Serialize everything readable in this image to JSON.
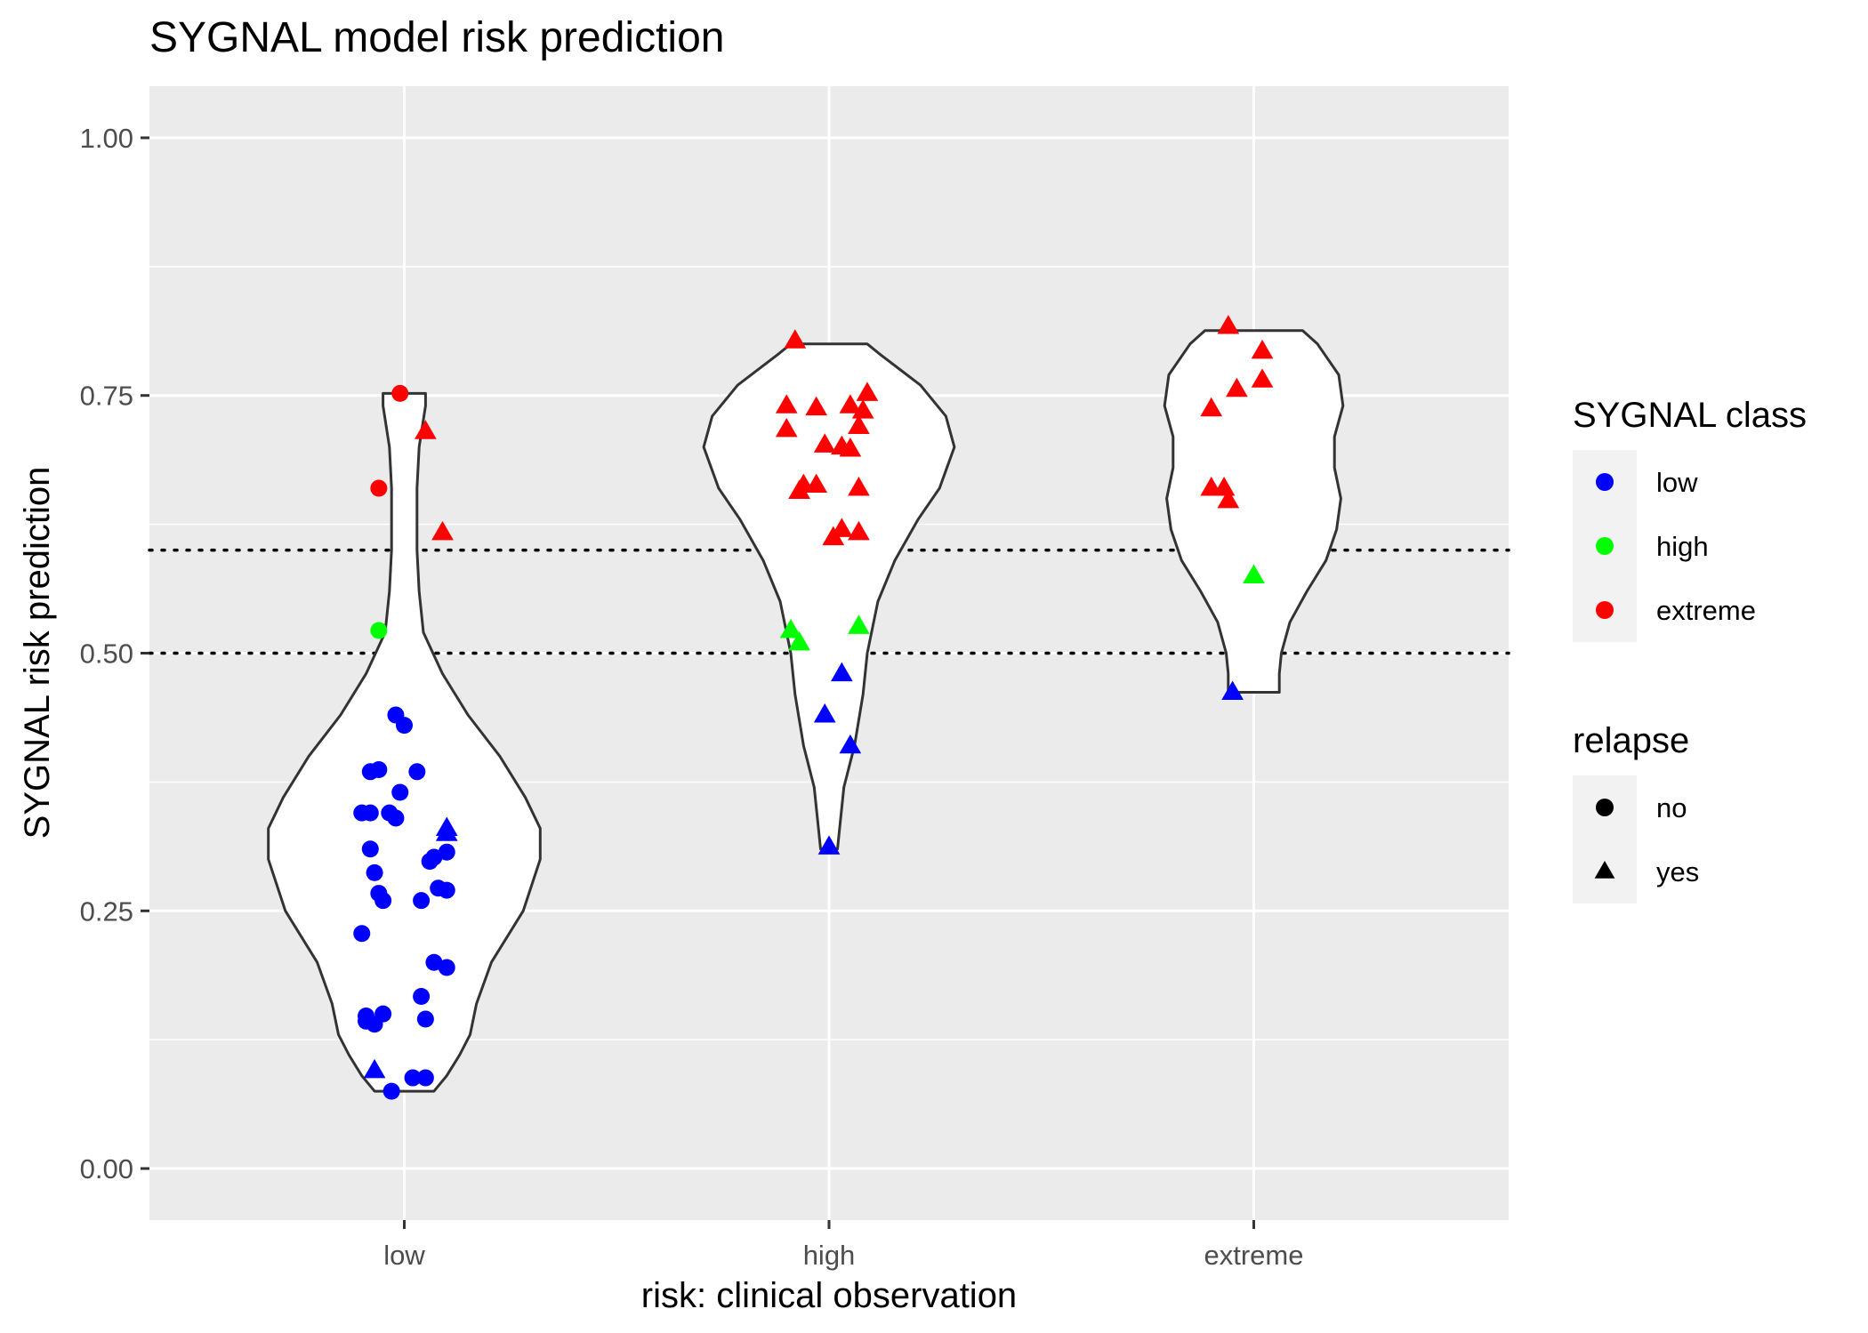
{
  "chart_data": {
    "type": "violin-jitter",
    "title": "SYGNAL model risk prediction",
    "xlabel": "risk: clinical observation",
    "ylabel": "SYGNAL risk prediction",
    "ylim": [
      -0.05,
      1.05
    ],
    "yticks": [
      0.0,
      0.25,
      0.5,
      0.75,
      1.0
    ],
    "ytick_labels": [
      "0.00",
      "0.25",
      "0.50",
      "0.75",
      "1.00"
    ],
    "categories": [
      "low",
      "high",
      "extreme"
    ],
    "reference_lines": [
      0.5,
      0.6
    ],
    "grid": true,
    "legend_position": "right",
    "legends": [
      {
        "title": "SYGNAL class",
        "entries": [
          {
            "label": "low",
            "color": "#0000FF",
            "shape": "circle"
          },
          {
            "label": "high",
            "color": "#00FF00",
            "shape": "circle"
          },
          {
            "label": "extreme",
            "color": "#FF0000",
            "shape": "circle"
          }
        ]
      },
      {
        "title": "relapse",
        "entries": [
          {
            "label": "no",
            "color": "#000000",
            "shape": "circle"
          },
          {
            "label": "yes",
            "color": "#000000",
            "shape": "triangle"
          }
        ]
      }
    ],
    "class_colors": {
      "low": "#0000FF",
      "high": "#00FF00",
      "extreme": "#FF0000"
    },
    "violins": [
      {
        "category": "low",
        "ymin": 0.075,
        "ymax": 0.752,
        "profile": [
          [
            0.075,
            0.14
          ],
          [
            0.09,
            0.2
          ],
          [
            0.11,
            0.26
          ],
          [
            0.13,
            0.31
          ],
          [
            0.16,
            0.34
          ],
          [
            0.2,
            0.41
          ],
          [
            0.25,
            0.56
          ],
          [
            0.3,
            0.64
          ],
          [
            0.33,
            0.64
          ],
          [
            0.36,
            0.57
          ],
          [
            0.4,
            0.45
          ],
          [
            0.44,
            0.3
          ],
          [
            0.48,
            0.18
          ],
          [
            0.52,
            0.09
          ],
          [
            0.56,
            0.07
          ],
          [
            0.6,
            0.06
          ],
          [
            0.66,
            0.06
          ],
          [
            0.7,
            0.07
          ],
          [
            0.74,
            0.1
          ],
          [
            0.752,
            0.1
          ]
        ]
      },
      {
        "category": "high",
        "ymin": 0.31,
        "ymax": 0.8,
        "profile": [
          [
            0.31,
            0.04
          ],
          [
            0.33,
            0.05
          ],
          [
            0.37,
            0.07
          ],
          [
            0.41,
            0.12
          ],
          [
            0.46,
            0.16
          ],
          [
            0.5,
            0.18
          ],
          [
            0.55,
            0.23
          ],
          [
            0.59,
            0.31
          ],
          [
            0.63,
            0.42
          ],
          [
            0.66,
            0.52
          ],
          [
            0.7,
            0.59
          ],
          [
            0.73,
            0.55
          ],
          [
            0.76,
            0.43
          ],
          [
            0.79,
            0.24
          ],
          [
            0.8,
            0.18
          ]
        ]
      },
      {
        "category": "extreme",
        "ymin": 0.462,
        "ymax": 0.813,
        "profile": [
          [
            0.462,
            0.12
          ],
          [
            0.48,
            0.12
          ],
          [
            0.5,
            0.13
          ],
          [
            0.53,
            0.17
          ],
          [
            0.56,
            0.25
          ],
          [
            0.59,
            0.34
          ],
          [
            0.62,
            0.39
          ],
          [
            0.65,
            0.41
          ],
          [
            0.68,
            0.38
          ],
          [
            0.71,
            0.38
          ],
          [
            0.74,
            0.42
          ],
          [
            0.77,
            0.4
          ],
          [
            0.8,
            0.3
          ],
          [
            0.813,
            0.23
          ]
        ]
      }
    ],
    "points": [
      {
        "category": "low",
        "jitter": -0.01,
        "y": 0.752,
        "cls": "extreme",
        "relapse": "no"
      },
      {
        "category": "low",
        "jitter": 0.05,
        "y": 0.715,
        "cls": "extreme",
        "relapse": "yes"
      },
      {
        "category": "low",
        "jitter": -0.06,
        "y": 0.66,
        "cls": "extreme",
        "relapse": "no"
      },
      {
        "category": "low",
        "jitter": 0.09,
        "y": 0.617,
        "cls": "extreme",
        "relapse": "yes"
      },
      {
        "category": "low",
        "jitter": -0.06,
        "y": 0.522,
        "cls": "high",
        "relapse": "no"
      },
      {
        "category": "low",
        "jitter": -0.02,
        "y": 0.44,
        "cls": "low",
        "relapse": "no"
      },
      {
        "category": "low",
        "jitter": 0.0,
        "y": 0.43,
        "cls": "low",
        "relapse": "no"
      },
      {
        "category": "low",
        "jitter": -0.08,
        "y": 0.385,
        "cls": "low",
        "relapse": "no"
      },
      {
        "category": "low",
        "jitter": -0.06,
        "y": 0.387,
        "cls": "low",
        "relapse": "no"
      },
      {
        "category": "low",
        "jitter": 0.03,
        "y": 0.385,
        "cls": "low",
        "relapse": "no"
      },
      {
        "category": "low",
        "jitter": -0.01,
        "y": 0.365,
        "cls": "low",
        "relapse": "no"
      },
      {
        "category": "low",
        "jitter": -0.1,
        "y": 0.345,
        "cls": "low",
        "relapse": "no"
      },
      {
        "category": "low",
        "jitter": -0.08,
        "y": 0.345,
        "cls": "low",
        "relapse": "no"
      },
      {
        "category": "low",
        "jitter": -0.035,
        "y": 0.345,
        "cls": "low",
        "relapse": "no"
      },
      {
        "category": "low",
        "jitter": -0.02,
        "y": 0.34,
        "cls": "low",
        "relapse": "no"
      },
      {
        "category": "low",
        "jitter": 0.1,
        "y": 0.33,
        "cls": "low",
        "relapse": "yes"
      },
      {
        "category": "low",
        "jitter": 0.1,
        "y": 0.325,
        "cls": "low",
        "relapse": "yes"
      },
      {
        "category": "low",
        "jitter": -0.08,
        "y": 0.31,
        "cls": "low",
        "relapse": "no"
      },
      {
        "category": "low",
        "jitter": 0.1,
        "y": 0.307,
        "cls": "low",
        "relapse": "no"
      },
      {
        "category": "low",
        "jitter": 0.07,
        "y": 0.302,
        "cls": "low",
        "relapse": "no"
      },
      {
        "category": "low",
        "jitter": 0.06,
        "y": 0.298,
        "cls": "low",
        "relapse": "no"
      },
      {
        "category": "low",
        "jitter": -0.07,
        "y": 0.287,
        "cls": "low",
        "relapse": "no"
      },
      {
        "category": "low",
        "jitter": 0.08,
        "y": 0.272,
        "cls": "low",
        "relapse": "no"
      },
      {
        "category": "low",
        "jitter": 0.1,
        "y": 0.27,
        "cls": "low",
        "relapse": "no"
      },
      {
        "category": "low",
        "jitter": -0.06,
        "y": 0.267,
        "cls": "low",
        "relapse": "no"
      },
      {
        "category": "low",
        "jitter": -0.05,
        "y": 0.26,
        "cls": "low",
        "relapse": "no"
      },
      {
        "category": "low",
        "jitter": 0.04,
        "y": 0.26,
        "cls": "low",
        "relapse": "no"
      },
      {
        "category": "low",
        "jitter": -0.1,
        "y": 0.228,
        "cls": "low",
        "relapse": "no"
      },
      {
        "category": "low",
        "jitter": 0.07,
        "y": 0.2,
        "cls": "low",
        "relapse": "no"
      },
      {
        "category": "low",
        "jitter": 0.1,
        "y": 0.195,
        "cls": "low",
        "relapse": "no"
      },
      {
        "category": "low",
        "jitter": 0.04,
        "y": 0.167,
        "cls": "low",
        "relapse": "no"
      },
      {
        "category": "low",
        "jitter": -0.09,
        "y": 0.148,
        "cls": "low",
        "relapse": "no"
      },
      {
        "category": "low",
        "jitter": -0.05,
        "y": 0.15,
        "cls": "low",
        "relapse": "no"
      },
      {
        "category": "low",
        "jitter": -0.09,
        "y": 0.143,
        "cls": "low",
        "relapse": "no"
      },
      {
        "category": "low",
        "jitter": -0.07,
        "y": 0.14,
        "cls": "low",
        "relapse": "no"
      },
      {
        "category": "low",
        "jitter": 0.05,
        "y": 0.145,
        "cls": "low",
        "relapse": "no"
      },
      {
        "category": "low",
        "jitter": -0.07,
        "y": 0.095,
        "cls": "low",
        "relapse": "yes"
      },
      {
        "category": "low",
        "jitter": 0.02,
        "y": 0.088,
        "cls": "low",
        "relapse": "no"
      },
      {
        "category": "low",
        "jitter": 0.05,
        "y": 0.088,
        "cls": "low",
        "relapse": "no"
      },
      {
        "category": "low",
        "jitter": -0.03,
        "y": 0.075,
        "cls": "low",
        "relapse": "no"
      },
      {
        "category": "high",
        "jitter": -0.08,
        "y": 0.803,
        "cls": "extreme",
        "relapse": "yes"
      },
      {
        "category": "high",
        "jitter": 0.09,
        "y": 0.752,
        "cls": "extreme",
        "relapse": "yes"
      },
      {
        "category": "high",
        "jitter": -0.1,
        "y": 0.74,
        "cls": "extreme",
        "relapse": "yes"
      },
      {
        "category": "high",
        "jitter": -0.03,
        "y": 0.738,
        "cls": "extreme",
        "relapse": "yes"
      },
      {
        "category": "high",
        "jitter": 0.05,
        "y": 0.74,
        "cls": "extreme",
        "relapse": "yes"
      },
      {
        "category": "high",
        "jitter": 0.08,
        "y": 0.735,
        "cls": "extreme",
        "relapse": "yes"
      },
      {
        "category": "high",
        "jitter": 0.07,
        "y": 0.72,
        "cls": "extreme",
        "relapse": "yes"
      },
      {
        "category": "high",
        "jitter": -0.1,
        "y": 0.717,
        "cls": "extreme",
        "relapse": "yes"
      },
      {
        "category": "high",
        "jitter": -0.01,
        "y": 0.702,
        "cls": "extreme",
        "relapse": "yes"
      },
      {
        "category": "high",
        "jitter": 0.03,
        "y": 0.7,
        "cls": "extreme",
        "relapse": "yes"
      },
      {
        "category": "high",
        "jitter": 0.05,
        "y": 0.698,
        "cls": "extreme",
        "relapse": "yes"
      },
      {
        "category": "high",
        "jitter": -0.06,
        "y": 0.663,
        "cls": "extreme",
        "relapse": "yes"
      },
      {
        "category": "high",
        "jitter": -0.03,
        "y": 0.663,
        "cls": "extreme",
        "relapse": "yes"
      },
      {
        "category": "high",
        "jitter": -0.07,
        "y": 0.657,
        "cls": "extreme",
        "relapse": "yes"
      },
      {
        "category": "high",
        "jitter": 0.07,
        "y": 0.66,
        "cls": "extreme",
        "relapse": "yes"
      },
      {
        "category": "high",
        "jitter": 0.03,
        "y": 0.62,
        "cls": "extreme",
        "relapse": "yes"
      },
      {
        "category": "high",
        "jitter": 0.07,
        "y": 0.617,
        "cls": "extreme",
        "relapse": "yes"
      },
      {
        "category": "high",
        "jitter": 0.01,
        "y": 0.612,
        "cls": "extreme",
        "relapse": "yes"
      },
      {
        "category": "high",
        "jitter": -0.09,
        "y": 0.522,
        "cls": "high",
        "relapse": "yes"
      },
      {
        "category": "high",
        "jitter": 0.07,
        "y": 0.526,
        "cls": "high",
        "relapse": "yes"
      },
      {
        "category": "high",
        "jitter": -0.07,
        "y": 0.51,
        "cls": "high",
        "relapse": "yes"
      },
      {
        "category": "high",
        "jitter": 0.03,
        "y": 0.48,
        "cls": "low",
        "relapse": "yes"
      },
      {
        "category": "high",
        "jitter": -0.01,
        "y": 0.44,
        "cls": "low",
        "relapse": "yes"
      },
      {
        "category": "high",
        "jitter": 0.05,
        "y": 0.41,
        "cls": "low",
        "relapse": "yes"
      },
      {
        "category": "high",
        "jitter": 0.0,
        "y": 0.312,
        "cls": "low",
        "relapse": "yes"
      },
      {
        "category": "extreme",
        "jitter": -0.06,
        "y": 0.817,
        "cls": "extreme",
        "relapse": "yes"
      },
      {
        "category": "extreme",
        "jitter": 0.02,
        "y": 0.793,
        "cls": "extreme",
        "relapse": "yes"
      },
      {
        "category": "extreme",
        "jitter": 0.02,
        "y": 0.765,
        "cls": "extreme",
        "relapse": "yes"
      },
      {
        "category": "extreme",
        "jitter": -0.04,
        "y": 0.756,
        "cls": "extreme",
        "relapse": "yes"
      },
      {
        "category": "extreme",
        "jitter": -0.1,
        "y": 0.737,
        "cls": "extreme",
        "relapse": "yes"
      },
      {
        "category": "extreme",
        "jitter": -0.1,
        "y": 0.66,
        "cls": "extreme",
        "relapse": "yes"
      },
      {
        "category": "extreme",
        "jitter": -0.07,
        "y": 0.66,
        "cls": "extreme",
        "relapse": "yes"
      },
      {
        "category": "extreme",
        "jitter": -0.06,
        "y": 0.648,
        "cls": "extreme",
        "relapse": "yes"
      },
      {
        "category": "extreme",
        "jitter": 0.0,
        "y": 0.575,
        "cls": "high",
        "relapse": "yes"
      },
      {
        "category": "extreme",
        "jitter": -0.05,
        "y": 0.462,
        "cls": "low",
        "relapse": "yes"
      }
    ]
  }
}
